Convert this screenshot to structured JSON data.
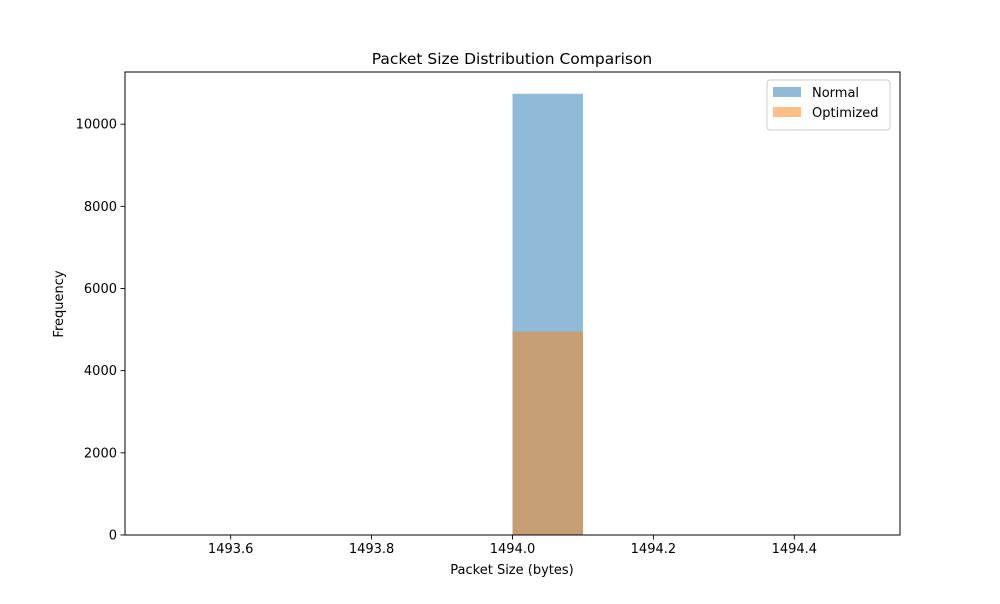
{
  "chart_data": {
    "type": "bar",
    "title": "Packet Size Distribution Comparison",
    "xlabel": "Packet Size (bytes)",
    "ylabel": "Frequency",
    "xlim": [
      1493.45,
      1494.55
    ],
    "ylim": [
      0,
      11270
    ],
    "x_ticks": [
      1493.6,
      1493.8,
      1494.0,
      1494.2,
      1494.4
    ],
    "x_tick_labels": [
      "1493.6",
      "1493.8",
      "1494.0",
      "1494.2",
      "1494.4"
    ],
    "y_ticks": [
      0,
      2000,
      4000,
      6000,
      8000,
      10000
    ],
    "y_tick_labels": [
      "0",
      "2000",
      "4000",
      "6000",
      "8000",
      "10000"
    ],
    "legend_position": "top-right",
    "grid": false,
    "series": [
      {
        "name": "Normal",
        "color": "#1f77b4",
        "opacity": 0.5,
        "bins": [
          {
            "x0": 1494.0,
            "x1": 1494.1,
            "count": 10740
          }
        ]
      },
      {
        "name": "Optimized",
        "color": "#ff7f0e",
        "opacity": 0.5,
        "bins": [
          {
            "x0": 1494.0,
            "x1": 1494.1,
            "count": 4950
          }
        ]
      }
    ]
  }
}
